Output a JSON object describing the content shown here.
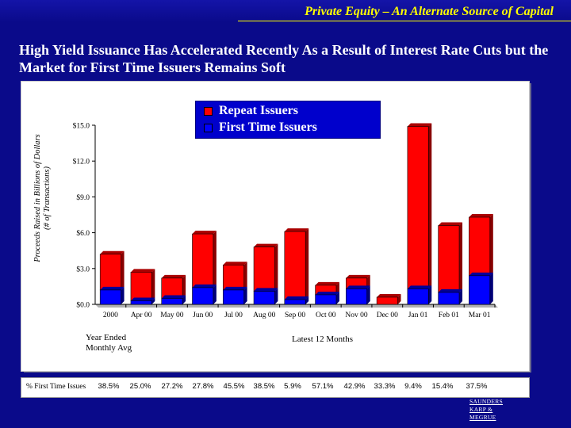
{
  "header": {
    "title": "Private Equity – An Alternate Source of Capital"
  },
  "slide": {
    "title": "High Yield Issuance Has Accelerated Recently As a Result of Interest Rate Cuts but the Market for First Time Issuers Remains Soft"
  },
  "chart_data": {
    "type": "bar",
    "stacked": true,
    "ylabel_line1": "Proceeds Raised in Billions of Dollars",
    "ylabel_line2": "(# of Transactions)",
    "ylim": [
      0,
      15
    ],
    "yticks": [
      "$0.0",
      "$3.0",
      "$6.0",
      "$9.0",
      "$12.0",
      "$15.0"
    ],
    "ytick_values": [
      0,
      3,
      6,
      9,
      12,
      15
    ],
    "categories": [
      "2000",
      "Apr 00",
      "May 00",
      "Jun 00",
      "Jul 00",
      "Aug 00",
      "Sep 00",
      "Oct 00",
      "Nov 00",
      "Dec 00",
      "Jan 01",
      "Feb 01",
      "Mar 01"
    ],
    "series": [
      {
        "name": "First Time Issuers",
        "color": "#0000ff",
        "values": [
          1.2,
          0.3,
          0.5,
          1.4,
          1.2,
          1.1,
          0.4,
          0.8,
          1.3,
          0.0,
          1.3,
          1.0,
          2.4
        ]
      },
      {
        "name": "Repeat Issuers",
        "color": "#ff0000",
        "values": [
          3.0,
          2.4,
          1.7,
          4.5,
          2.1,
          3.7,
          5.7,
          0.8,
          0.9,
          0.6,
          13.6,
          5.6,
          4.9
        ]
      }
    ],
    "legend_position": "top-center",
    "grid": false
  },
  "notes": {
    "left": "Year Ended Monthly Avg",
    "right": "Latest 12 Months"
  },
  "pct_row": {
    "label": "% First Time Issues",
    "values": [
      "38.5%",
      "25.0%",
      "27.2%",
      "27.8%",
      "45.5%",
      "38.5%",
      "5.9%",
      "57.1%",
      "42.9%",
      "33.3%",
      "9.4%",
      "15.4%",
      "37.5%"
    ]
  },
  "logo": {
    "line1": "SAUNDERS",
    "line2": "KARP &",
    "line3": "MEGRUE"
  },
  "colors": {
    "background": "#0a0a8a",
    "header_text": "#ffff00",
    "legend_bg": "#0000cc"
  }
}
